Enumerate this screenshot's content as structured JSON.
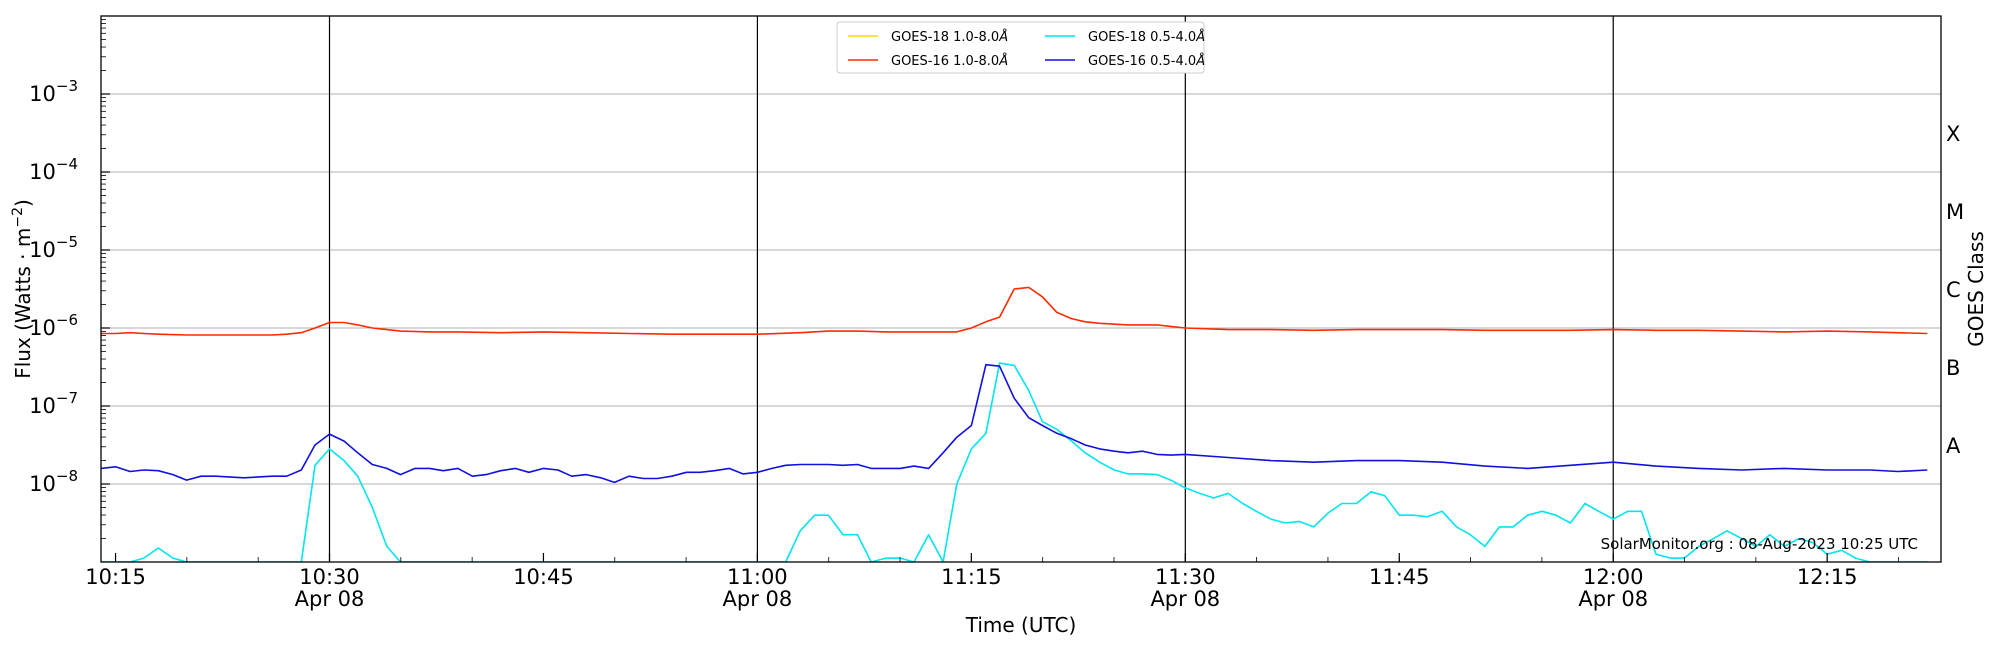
{
  "chart_data": {
    "type": "line",
    "xlabel": "Time (UTC)",
    "ylabel": "Flux (Watts · m",
    "ylabel_sup": "−2",
    "ylabel_close": ")",
    "y2label": "GOES Class",
    "yscale": "log",
    "xlim": [
      10.233,
      12.383
    ],
    "ylim_log10": [
      -9.0,
      -2.0
    ],
    "grid": "horizontal at decades",
    "legend_position": "top-center",
    "watermark": "SolarMonitor.org : 08-Aug-2023 10:25 UTC",
    "y_ticks": [
      {
        "exp": -3,
        "label": "10",
        "sup": "−3"
      },
      {
        "exp": -4,
        "label": "10",
        "sup": "−4"
      },
      {
        "exp": -5,
        "label": "10",
        "sup": "−5"
      },
      {
        "exp": -6,
        "label": "10",
        "sup": "−6"
      },
      {
        "exp": -7,
        "label": "10",
        "sup": "−7"
      },
      {
        "exp": -8,
        "label": "10",
        "sup": "−8"
      }
    ],
    "x_ticks": [
      {
        "t": 10.25,
        "label": "10:15",
        "date": ""
      },
      {
        "t": 10.5,
        "label": "10:30",
        "date": "Apr 08"
      },
      {
        "t": 10.75,
        "label": "10:45",
        "date": ""
      },
      {
        "t": 11.0,
        "label": "11:00",
        "date": "Apr 08"
      },
      {
        "t": 11.25,
        "label": "11:15",
        "date": ""
      },
      {
        "t": 11.5,
        "label": "11:30",
        "date": "Apr 08"
      },
      {
        "t": 11.75,
        "label": "11:45",
        "date": ""
      },
      {
        "t": 12.0,
        "label": "12:00",
        "date": "Apr 08"
      },
      {
        "t": 12.25,
        "label": "12:15",
        "date": ""
      }
    ],
    "class_labels": [
      {
        "label": "X",
        "log10": -3.5
      },
      {
        "label": "M",
        "log10": -4.5
      },
      {
        "label": "C",
        "log10": -5.5
      },
      {
        "label": "B",
        "log10": -6.5
      },
      {
        "label": "A",
        "log10": -7.5
      }
    ],
    "vlines_t": [
      10.5,
      11.0,
      11.5,
      12.0
    ],
    "series": [
      {
        "name": "GOES-18 1.0-8.0",
        "unit": "Å",
        "color": "#f5d800",
        "t": [],
        "log10_flux": []
      },
      {
        "name": "GOES-16 1.0-8.0",
        "unit": "Å",
        "color": "#ff2a00",
        "t": [
          10.233,
          10.25,
          10.267,
          10.283,
          10.3,
          10.333,
          10.367,
          10.4,
          10.433,
          10.45,
          10.467,
          10.483,
          10.5,
          10.517,
          10.533,
          10.55,
          10.583,
          10.617,
          10.65,
          10.7,
          10.75,
          10.8,
          10.85,
          10.9,
          10.95,
          11.0,
          11.05,
          11.083,
          11.117,
          11.15,
          11.2,
          11.233,
          11.25,
          11.267,
          11.283,
          11.3,
          11.317,
          11.333,
          11.35,
          11.367,
          11.383,
          11.4,
          11.433,
          11.467,
          11.5,
          11.55,
          11.6,
          11.65,
          11.7,
          11.75,
          11.8,
          11.85,
          11.9,
          11.95,
          12.0,
          12.05,
          12.1,
          12.15,
          12.2,
          12.25,
          12.3,
          12.367
        ],
        "log10_flux": [
          -6.07,
          -6.07,
          -6.06,
          -6.07,
          -6.08,
          -6.09,
          -6.09,
          -6.09,
          -6.09,
          -6.08,
          -6.06,
          -6.0,
          -5.93,
          -5.93,
          -5.96,
          -6.0,
          -6.04,
          -6.05,
          -6.05,
          -6.06,
          -6.05,
          -6.06,
          -6.07,
          -6.08,
          -6.08,
          -6.08,
          -6.06,
          -6.04,
          -6.04,
          -6.05,
          -6.05,
          -6.05,
          -6.0,
          -5.92,
          -5.86,
          -5.5,
          -5.48,
          -5.6,
          -5.8,
          -5.88,
          -5.92,
          -5.94,
          -5.96,
          -5.96,
          -6.0,
          -6.02,
          -6.02,
          -6.03,
          -6.02,
          -6.02,
          -6.02,
          -6.03,
          -6.03,
          -6.03,
          -6.02,
          -6.03,
          -6.03,
          -6.04,
          -6.05,
          -6.04,
          -6.05,
          -6.07
        ]
      },
      {
        "name": "GOES-18 0.5-4.0",
        "unit": "Å",
        "color": "#00e5f0",
        "t": [
          10.233,
          10.267,
          10.283,
          10.3,
          10.317,
          10.333,
          10.45,
          10.467,
          10.483,
          10.5,
          10.517,
          10.533,
          10.55,
          10.567,
          10.583,
          10.6,
          10.617,
          10.683,
          10.733,
          10.8,
          10.9,
          10.95,
          11.0,
          11.033,
          11.05,
          11.067,
          11.083,
          11.1,
          11.117,
          11.133,
          11.15,
          11.167,
          11.183,
          11.2,
          11.217,
          11.233,
          11.25,
          11.267,
          11.283,
          11.3,
          11.317,
          11.333,
          11.35,
          11.367,
          11.383,
          11.4,
          11.417,
          11.433,
          11.45,
          11.467,
          11.483,
          11.5,
          11.517,
          11.533,
          11.55,
          11.567,
          11.583,
          11.6,
          11.617,
          11.633,
          11.65,
          11.667,
          11.683,
          11.7,
          11.717,
          11.733,
          11.75,
          11.767,
          11.783,
          11.8,
          11.817,
          11.833,
          11.85,
          11.867,
          11.883,
          11.9,
          11.917,
          11.933,
          11.95,
          11.967,
          11.983,
          12.0,
          12.017,
          12.033,
          12.05,
          12.067,
          12.083,
          12.1,
          12.117,
          12.133,
          12.15,
          12.167,
          12.183,
          12.2,
          12.217,
          12.233,
          12.25,
          12.267,
          12.283,
          12.3,
          12.333,
          12.367
        ],
        "log10_flux": [
          -9.0,
          -9.0,
          -8.95,
          -8.82,
          -8.95,
          -9.0,
          -9.0,
          -9.0,
          -7.76,
          -7.55,
          -7.7,
          -7.9,
          -8.3,
          -8.8,
          -9.0,
          -9.0,
          -9.0,
          -9.0,
          -9.0,
          -9.0,
          -9.0,
          -9.0,
          -9.0,
          -9.0,
          -8.6,
          -8.4,
          -8.4,
          -8.65,
          -8.65,
          -9.0,
          -8.95,
          -8.95,
          -9.0,
          -8.65,
          -9.0,
          -8.0,
          -7.55,
          -7.35,
          -6.45,
          -6.48,
          -6.8,
          -7.2,
          -7.3,
          -7.45,
          -7.6,
          -7.72,
          -7.82,
          -7.87,
          -7.87,
          -7.88,
          -7.95,
          -8.05,
          -8.12,
          -8.18,
          -8.12,
          -8.25,
          -8.35,
          -8.45,
          -8.5,
          -8.48,
          -8.55,
          -8.37,
          -8.25,
          -8.25,
          -8.1,
          -8.15,
          -8.4,
          -8.4,
          -8.42,
          -8.35,
          -8.55,
          -8.65,
          -8.8,
          -8.55,
          -8.55,
          -8.4,
          -8.35,
          -8.4,
          -8.5,
          -8.25,
          -8.35,
          -8.45,
          -8.35,
          -8.35,
          -8.9,
          -8.95,
          -8.95,
          -8.8,
          -8.7,
          -8.6,
          -8.7,
          -8.8,
          -8.65,
          -8.8,
          -8.7,
          -8.75,
          -8.9,
          -8.85,
          -8.95,
          -9.0,
          -9.0,
          -9.0
        ]
      },
      {
        "name": "GOES-16 0.5-4.0",
        "unit": "Å",
        "color": "#1010e0",
        "t": [
          10.233,
          10.25,
          10.267,
          10.283,
          10.3,
          10.317,
          10.333,
          10.35,
          10.367,
          10.4,
          10.433,
          10.45,
          10.467,
          10.483,
          10.5,
          10.517,
          10.533,
          10.55,
          10.567,
          10.583,
          10.6,
          10.617,
          10.633,
          10.65,
          10.667,
          10.683,
          10.7,
          10.717,
          10.733,
          10.75,
          10.767,
          10.783,
          10.8,
          10.817,
          10.833,
          10.85,
          10.867,
          10.883,
          10.9,
          10.917,
          10.933,
          10.95,
          10.967,
          10.983,
          11.0,
          11.017,
          11.033,
          11.05,
          11.067,
          11.083,
          11.1,
          11.117,
          11.133,
          11.15,
          11.167,
          11.183,
          11.2,
          11.217,
          11.233,
          11.25,
          11.267,
          11.283,
          11.3,
          11.317,
          11.333,
          11.35,
          11.367,
          11.383,
          11.4,
          11.417,
          11.433,
          11.45,
          11.467,
          11.483,
          11.5,
          11.55,
          11.6,
          11.65,
          11.7,
          11.75,
          11.8,
          11.85,
          11.9,
          11.95,
          12.0,
          12.05,
          12.1,
          12.15,
          12.2,
          12.25,
          12.3,
          12.333,
          12.367
        ],
        "log10_flux": [
          -7.8,
          -7.78,
          -7.84,
          -7.82,
          -7.83,
          -7.88,
          -7.95,
          -7.9,
          -7.9,
          -7.92,
          -7.9,
          -7.9,
          -7.82,
          -7.5,
          -7.36,
          -7.45,
          -7.6,
          -7.75,
          -7.8,
          -7.88,
          -7.8,
          -7.8,
          -7.83,
          -7.8,
          -7.9,
          -7.88,
          -7.83,
          -7.8,
          -7.85,
          -7.8,
          -7.82,
          -7.9,
          -7.88,
          -7.92,
          -7.98,
          -7.9,
          -7.93,
          -7.93,
          -7.9,
          -7.85,
          -7.85,
          -7.83,
          -7.8,
          -7.87,
          -7.85,
          -7.8,
          -7.76,
          -7.75,
          -7.75,
          -7.75,
          -7.76,
          -7.75,
          -7.8,
          -7.8,
          -7.8,
          -7.77,
          -7.8,
          -7.6,
          -7.4,
          -7.25,
          -6.47,
          -6.49,
          -6.9,
          -7.15,
          -7.25,
          -7.35,
          -7.42,
          -7.5,
          -7.55,
          -7.58,
          -7.6,
          -7.58,
          -7.62,
          -7.63,
          -7.62,
          -7.66,
          -7.7,
          -7.72,
          -7.7,
          -7.7,
          -7.72,
          -7.77,
          -7.8,
          -7.76,
          -7.72,
          -7.77,
          -7.8,
          -7.82,
          -7.8,
          -7.82,
          -7.82,
          -7.84,
          -7.82
        ]
      }
    ]
  }
}
